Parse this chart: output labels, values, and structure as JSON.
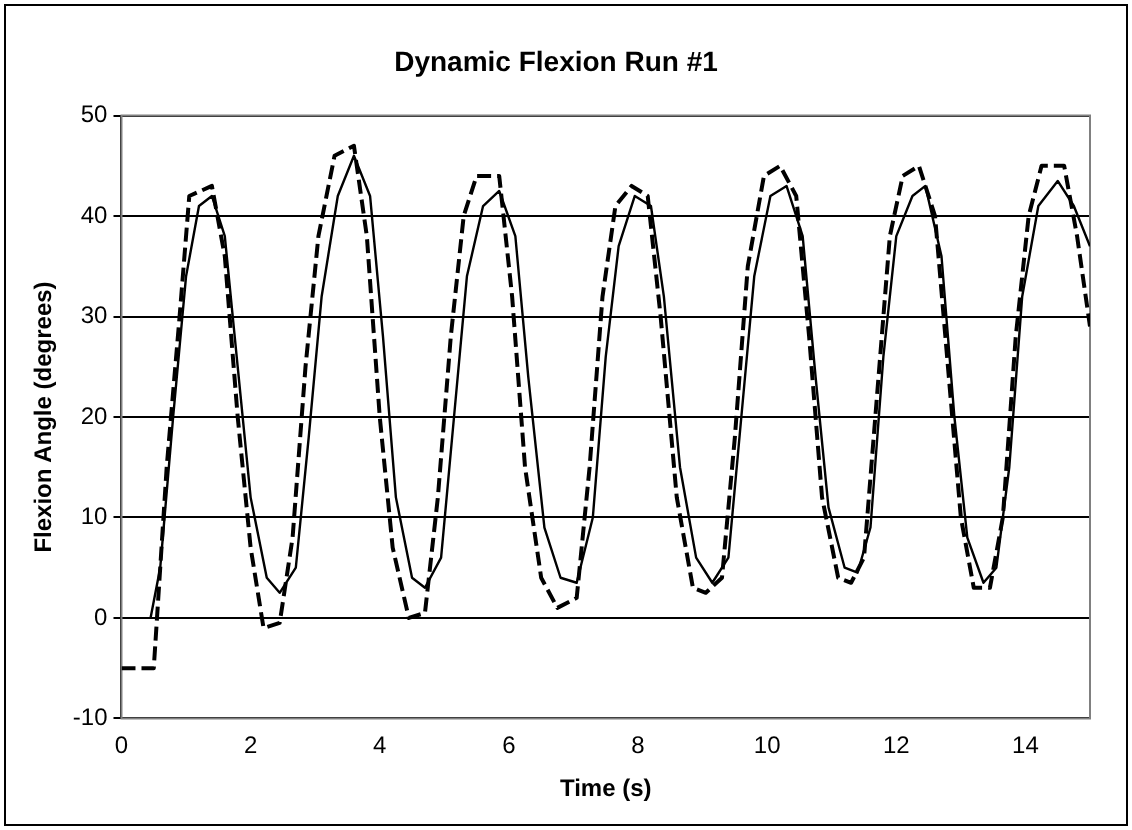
{
  "chart_data": {
    "type": "line",
    "title": "Dynamic Flexion Run #1",
    "xlabel": "Time (s)",
    "ylabel": "Flexion Angle (degrees)",
    "xlim": [
      0,
      15
    ],
    "xticks": [
      0,
      2,
      4,
      6,
      8,
      10,
      12,
      14
    ],
    "ylim": [
      -10,
      50
    ],
    "yticks": [
      -10,
      0,
      10,
      20,
      30,
      40,
      50
    ],
    "grid": "y",
    "marker": "none",
    "series": [
      {
        "color": "#000000",
        "line_style": "dashed",
        "x": [
          0,
          0.5,
          0.55,
          0.7,
          0.9,
          1.05,
          1.4,
          1.6,
          1.8,
          2.0,
          2.2,
          2.45,
          2.65,
          2.85,
          3.05,
          3.3,
          3.6,
          3.8,
          4.0,
          4.2,
          4.45,
          4.7,
          4.9,
          5.1,
          5.3,
          5.5,
          5.85,
          6.05,
          6.25,
          6.5,
          6.75,
          7.05,
          7.25,
          7.45,
          7.65,
          7.9,
          8.15,
          8.35,
          8.6,
          8.85,
          9.05,
          9.3,
          9.5,
          9.7,
          9.95,
          10.2,
          10.45,
          10.65,
          10.85,
          11.1,
          11.3,
          11.5,
          11.7,
          11.9,
          12.1,
          12.35,
          12.6,
          12.8,
          13.0,
          13.2,
          13.45,
          13.65,
          13.85,
          14.05,
          14.25,
          14.6,
          14.8,
          15
        ],
        "values": [
          -5,
          -5,
          0,
          15,
          30,
          42,
          43,
          36,
          20,
          7,
          -1,
          -0.5,
          8,
          25,
          38,
          46,
          47,
          38,
          20,
          7,
          0,
          0.5,
          12,
          28,
          40,
          44,
          44,
          32,
          15,
          4,
          1,
          2,
          15,
          32,
          41,
          43,
          42,
          30,
          12,
          3,
          2.5,
          4,
          18,
          35,
          44,
          45,
          42,
          28,
          12,
          4,
          3.5,
          6,
          22,
          38,
          44,
          45,
          40,
          25,
          10,
          3,
          3,
          10,
          28,
          40,
          45,
          45,
          38,
          29
        ]
      },
      {
        "color": "#000000",
        "line_style": "solid",
        "x": [
          0.45,
          0.6,
          0.8,
          1.0,
          1.2,
          1.4,
          1.6,
          1.8,
          2.0,
          2.25,
          2.45,
          2.7,
          2.9,
          3.1,
          3.35,
          3.6,
          3.85,
          4.05,
          4.25,
          4.5,
          4.7,
          4.95,
          5.15,
          5.35,
          5.6,
          5.85,
          6.1,
          6.3,
          6.55,
          6.8,
          7.05,
          7.3,
          7.5,
          7.7,
          7.95,
          8.2,
          8.4,
          8.65,
          8.9,
          9.15,
          9.4,
          9.6,
          9.8,
          10.05,
          10.3,
          10.55,
          10.75,
          10.95,
          11.2,
          11.4,
          11.6,
          11.8,
          12.0,
          12.25,
          12.45,
          12.7,
          12.9,
          13.1,
          13.35,
          13.55,
          13.75,
          13.95,
          14.2,
          14.5,
          14.75,
          15
        ],
        "values": [
          0,
          5,
          20,
          34,
          41,
          42,
          38,
          25,
          12,
          4,
          2.5,
          5,
          18,
          32,
          42,
          46,
          42,
          28,
          12,
          4,
          3,
          6,
          20,
          34,
          41,
          42.5,
          38,
          24,
          9,
          4,
          3.5,
          10,
          26,
          37,
          42,
          41,
          32,
          15,
          6,
          3.5,
          6,
          20,
          34,
          42,
          43,
          38,
          24,
          11,
          5,
          4.5,
          9,
          26,
          38,
          42,
          43,
          36,
          20,
          8,
          3.5,
          5,
          15,
          32,
          41,
          43.5,
          41,
          37
        ]
      }
    ]
  }
}
